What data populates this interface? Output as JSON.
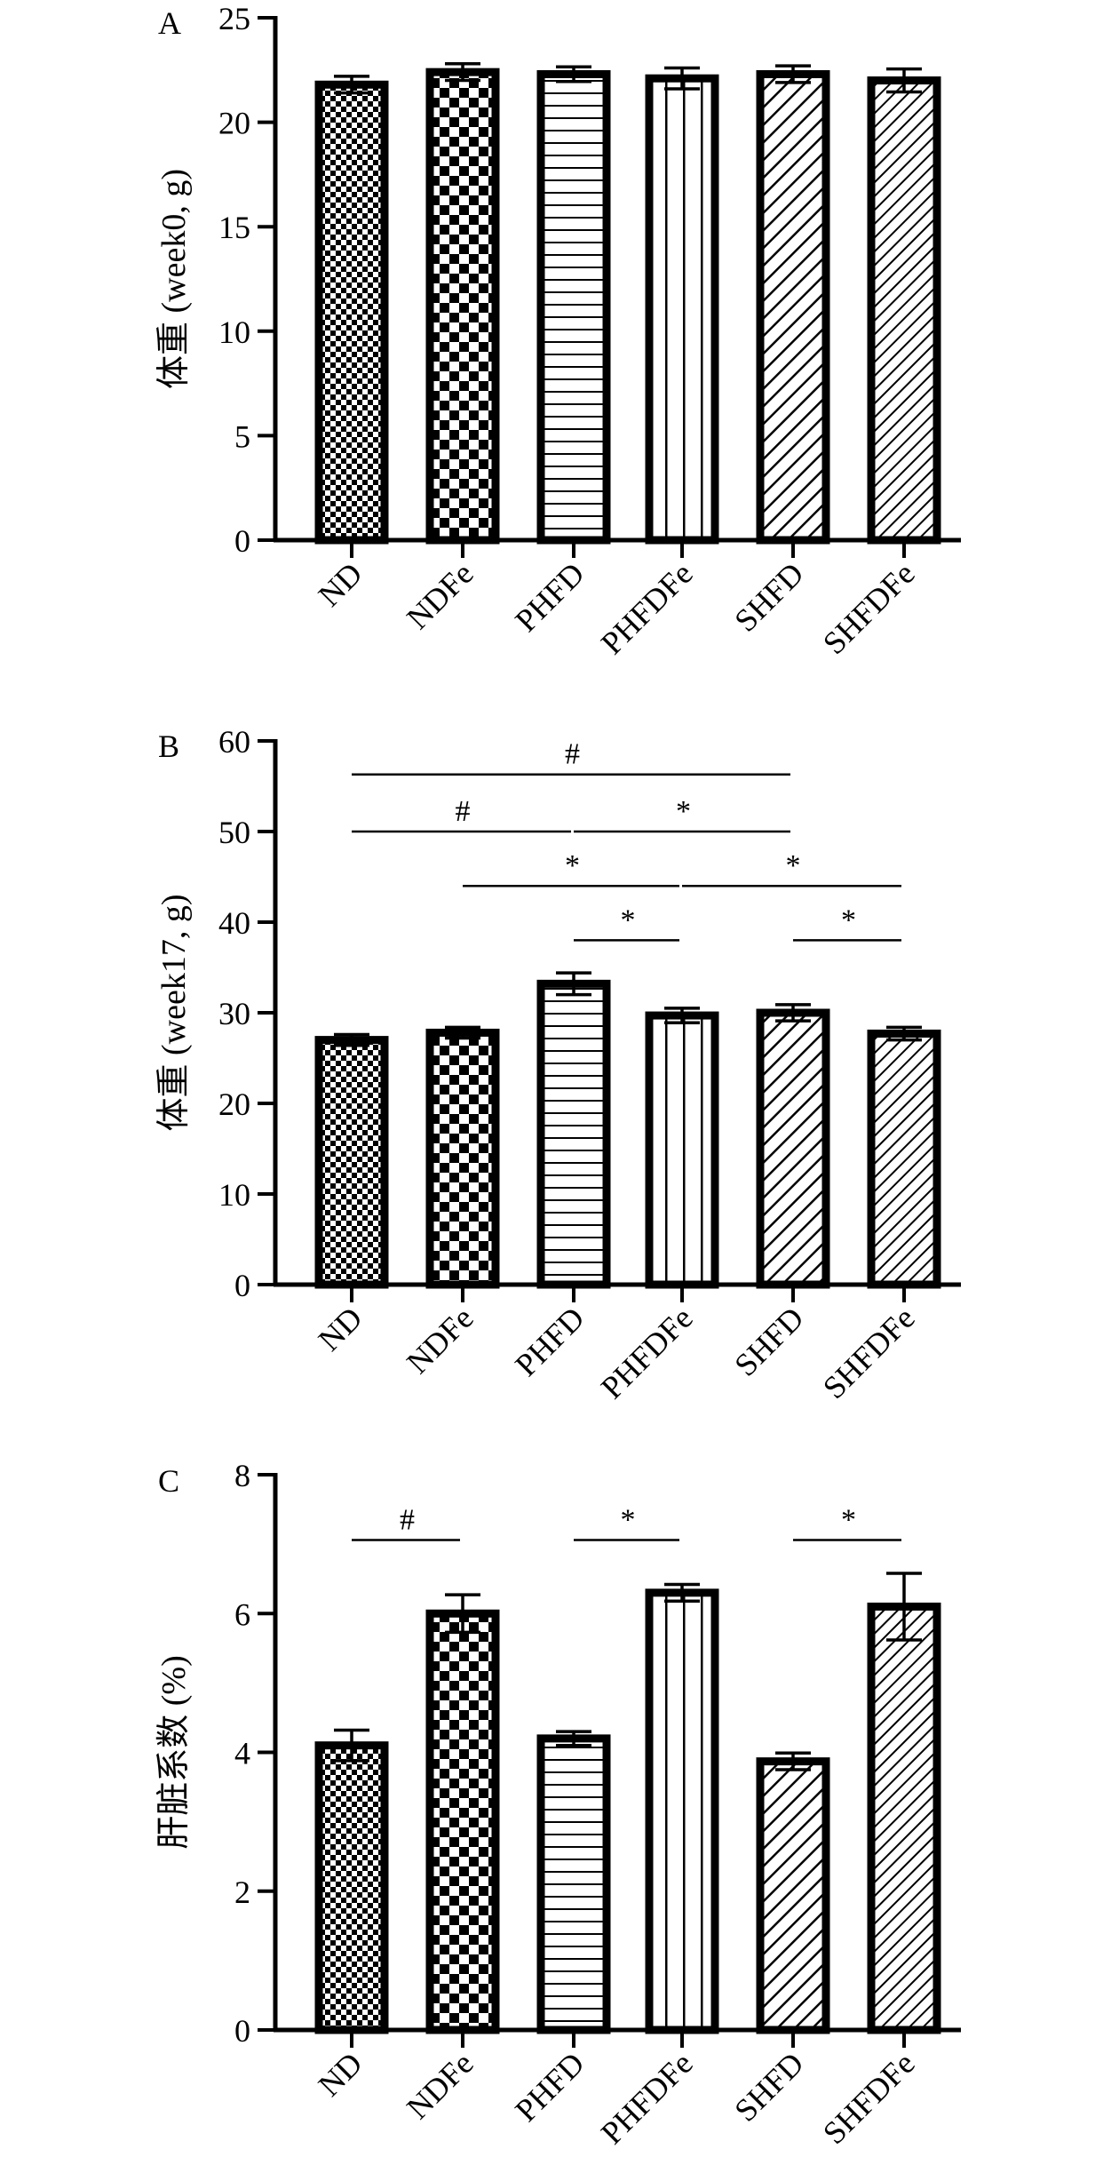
{
  "chart_data": [
    {
      "panel": "A",
      "type": "bar",
      "ylabel": "体重 (week0, g)",
      "xlabel": "",
      "ylim": [
        0,
        25
      ],
      "yticks": [
        0,
        5,
        10,
        15,
        20,
        25
      ],
      "categories": [
        "ND",
        "NDFe",
        "PHFD",
        "PHFDFe",
        "SHFD",
        "SHFDFe"
      ],
      "values": [
        21.8,
        22.4,
        22.3,
        22.1,
        22.3,
        22.0
      ],
      "errors": [
        0.4,
        0.4,
        0.35,
        0.5,
        0.4,
        0.55
      ],
      "significance": []
    },
    {
      "panel": "B",
      "type": "bar",
      "ylabel": "体重 (week17, g)",
      "xlabel": "",
      "ylim": [
        0,
        60
      ],
      "yticks": [
        0,
        10,
        20,
        30,
        40,
        50,
        60
      ],
      "categories": [
        "ND",
        "NDFe",
        "PHFD",
        "PHFDFe",
        "SHFD",
        "SHFDFe"
      ],
      "values": [
        27.0,
        27.8,
        33.2,
        29.7,
        30.0,
        27.7
      ],
      "errors": [
        0.6,
        0.6,
        1.2,
        0.8,
        0.9,
        0.7
      ],
      "significance": [
        {
          "from": 0,
          "to": 4,
          "label": "#",
          "y": 56.3
        },
        {
          "from": 0,
          "to": 2,
          "label": "#",
          "y": 50.0
        },
        {
          "from": 2,
          "to": 4,
          "label": "*",
          "y": 50.0
        },
        {
          "from": 1,
          "to": 3,
          "label": "*",
          "y": 44.0
        },
        {
          "from": 3,
          "to": 5,
          "label": "*",
          "y": 44.0
        },
        {
          "from": 2,
          "to": 3,
          "label": "*",
          "y": 38.0
        },
        {
          "from": 4,
          "to": 5,
          "label": "*",
          "y": 38.0
        }
      ]
    },
    {
      "panel": "C",
      "type": "bar",
      "ylabel": "肝脏系数 (%)",
      "xlabel": "",
      "ylim": [
        0,
        8
      ],
      "yticks": [
        0,
        2,
        4,
        6,
        8
      ],
      "categories": [
        "ND",
        "NDFe",
        "PHFD",
        "PHFDFe",
        "SHFD",
        "SHFDFe"
      ],
      "values": [
        4.1,
        6.0,
        4.2,
        6.3,
        3.87,
        6.1
      ],
      "errors": [
        0.22,
        0.27,
        0.1,
        0.12,
        0.12,
        0.48
      ],
      "significance": [
        {
          "from": 0,
          "to": 1,
          "label": "#",
          "y": 7.06
        },
        {
          "from": 2,
          "to": 3,
          "label": "*",
          "y": 7.06
        },
        {
          "from": 4,
          "to": 5,
          "label": "*",
          "y": 7.06
        }
      ]
    }
  ],
  "patterns": [
    "checker-fine",
    "checker-coarse",
    "horizontal-lines",
    "vertical-lines",
    "diagonal-lines",
    "diagonal-lines-dense"
  ],
  "colors": {
    "ink": "#000000",
    "background": "#ffffff"
  }
}
